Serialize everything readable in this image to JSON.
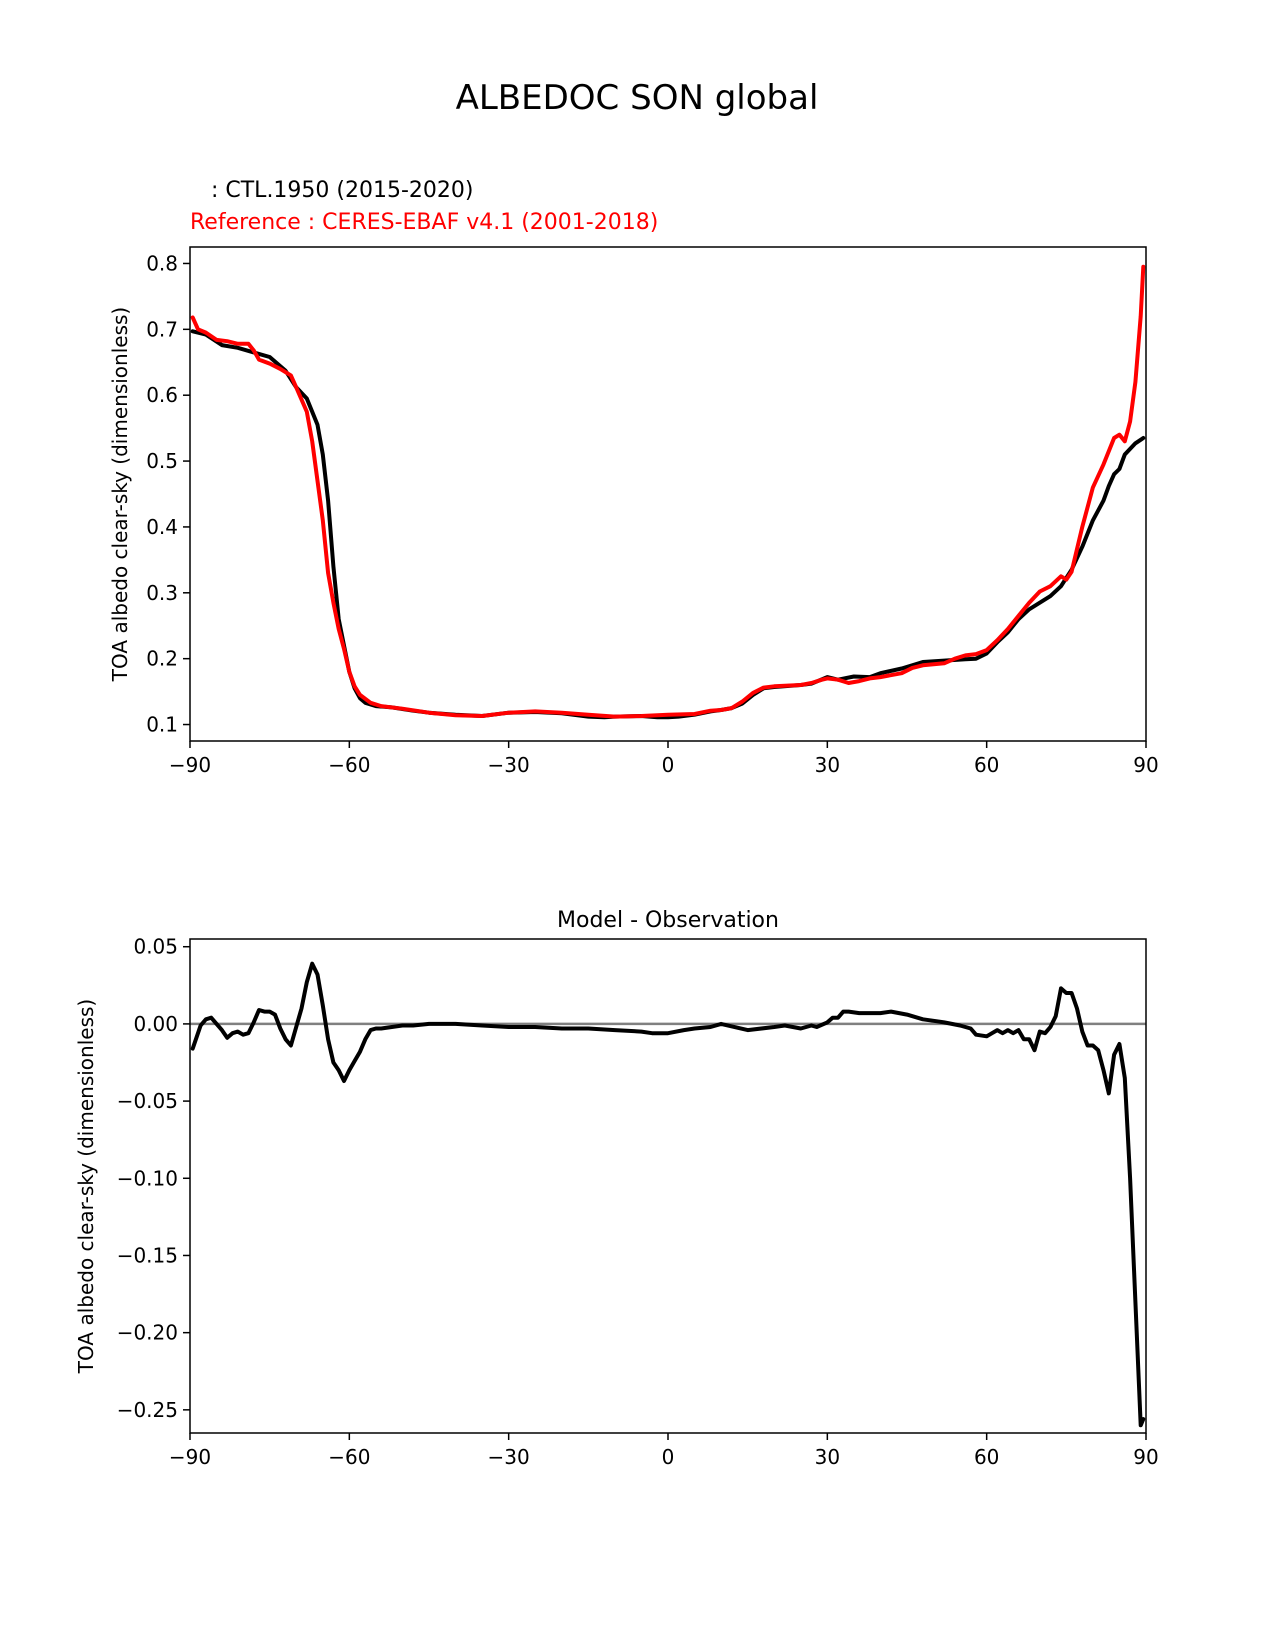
{
  "figure": {
    "suptitle": "ALBEDOC SON global",
    "model_label": "   : CTL.1950 (2015-2020)",
    "reference_label": "Reference : CERES-EBAF v4.1 (2001-2018)",
    "model_color": "#000000",
    "reference_color": "#ff0000",
    "zero_line_color": "#808080"
  },
  "chart_data": [
    {
      "type": "line",
      "title": "",
      "xlabel": "",
      "ylabel": "TOA albedo clear-sky (dimensionless)",
      "xlim": [
        -90,
        90
      ],
      "ylim": [
        0.075,
        0.825
      ],
      "xticks": [
        -90,
        -60,
        -30,
        0,
        30,
        60,
        90
      ],
      "xticklabels": [
        "−90",
        "−60",
        "−30",
        "0",
        "30",
        "60",
        "90"
      ],
      "yticks": [
        0.1,
        0.2,
        0.3,
        0.4,
        0.5,
        0.6,
        0.7,
        0.8
      ],
      "yticklabels": [
        "0.1",
        "0.2",
        "0.3",
        "0.4",
        "0.5",
        "0.6",
        "0.7",
        "0.8"
      ],
      "grid": false,
      "series": [
        {
          "color": "#000000",
          "x": [
            -89.5,
            -87,
            -84,
            -81,
            -78,
            -75,
            -72,
            -70,
            -68,
            -66,
            -65,
            -64,
            -63,
            -62,
            -61,
            -60,
            -59,
            -58,
            -57,
            -55,
            -52,
            -48,
            -45,
            -40,
            -35,
            -30,
            -25,
            -20,
            -15,
            -12,
            -10,
            -5,
            -2,
            0,
            2,
            5,
            8,
            10,
            12,
            14,
            16,
            18,
            20,
            25,
            27,
            30,
            32,
            35,
            38,
            40,
            44,
            46,
            48,
            52,
            56,
            58,
            60,
            62,
            64,
            66,
            68,
            70,
            72,
            74,
            76,
            78,
            80,
            82,
            83,
            84,
            85,
            86,
            88,
            89.5
          ],
          "y": [
            0.697,
            0.692,
            0.676,
            0.672,
            0.665,
            0.658,
            0.637,
            0.612,
            0.595,
            0.555,
            0.51,
            0.44,
            0.34,
            0.26,
            0.22,
            0.18,
            0.155,
            0.14,
            0.133,
            0.128,
            0.126,
            0.121,
            0.118,
            0.115,
            0.113,
            0.118,
            0.119,
            0.117,
            0.112,
            0.111,
            0.112,
            0.113,
            0.111,
            0.111,
            0.112,
            0.115,
            0.12,
            0.122,
            0.125,
            0.132,
            0.145,
            0.155,
            0.157,
            0.16,
            0.162,
            0.172,
            0.168,
            0.173,
            0.172,
            0.178,
            0.185,
            0.19,
            0.195,
            0.197,
            0.199,
            0.2,
            0.208,
            0.225,
            0.24,
            0.26,
            0.275,
            0.285,
            0.295,
            0.31,
            0.335,
            0.37,
            0.41,
            0.44,
            0.462,
            0.48,
            0.488,
            0.51,
            0.527,
            0.535
          ]
        },
        {
          "color": "#ff0000",
          "x": [
            -89.5,
            -88.5,
            -87,
            -85,
            -83,
            -81,
            -79,
            -78,
            -77,
            -75,
            -73,
            -71,
            -70,
            -68,
            -67,
            -66,
            -65,
            -64,
            -63,
            -62,
            -61,
            -60,
            -59,
            -58,
            -56,
            -54,
            -50,
            -45,
            -40,
            -35,
            -30,
            -25,
            -20,
            -15,
            -10,
            -5,
            0,
            5,
            8,
            10,
            12,
            14,
            16,
            18,
            20,
            25,
            27,
            29,
            30,
            32,
            34,
            36,
            38,
            40,
            44,
            46,
            48,
            52,
            54,
            56,
            58,
            60,
            62,
            64,
            66,
            68,
            70,
            72,
            74,
            75,
            76,
            78,
            80,
            82,
            84,
            85,
            86,
            87,
            88,
            89,
            89.5
          ],
          "y": [
            0.718,
            0.7,
            0.695,
            0.684,
            0.682,
            0.678,
            0.678,
            0.668,
            0.654,
            0.648,
            0.64,
            0.63,
            0.612,
            0.575,
            0.53,
            0.47,
            0.41,
            0.33,
            0.285,
            0.245,
            0.215,
            0.18,
            0.158,
            0.145,
            0.133,
            0.128,
            0.124,
            0.118,
            0.114,
            0.113,
            0.118,
            0.12,
            0.118,
            0.115,
            0.112,
            0.113,
            0.115,
            0.116,
            0.121,
            0.122,
            0.125,
            0.135,
            0.148,
            0.156,
            0.158,
            0.16,
            0.163,
            0.168,
            0.17,
            0.168,
            0.163,
            0.166,
            0.17,
            0.172,
            0.178,
            0.186,
            0.19,
            0.193,
            0.2,
            0.205,
            0.207,
            0.213,
            0.228,
            0.245,
            0.265,
            0.285,
            0.302,
            0.31,
            0.325,
            0.32,
            0.332,
            0.4,
            0.46,
            0.495,
            0.535,
            0.54,
            0.53,
            0.56,
            0.62,
            0.72,
            0.795
          ]
        }
      ]
    },
    {
      "type": "line",
      "title": "Model - Observation",
      "xlabel": "",
      "ylabel": "TOA albedo clear-sky (dimensionless)",
      "xlim": [
        -90,
        90
      ],
      "ylim": [
        -0.265,
        0.055
      ],
      "xticks": [
        -90,
        -60,
        -30,
        0,
        30,
        60,
        90
      ],
      "xticklabels": [
        "−90",
        "−60",
        "−30",
        "0",
        "30",
        "60",
        "90"
      ],
      "yticks": [
        0.05,
        0.0,
        -0.05,
        -0.1,
        -0.15,
        -0.2,
        -0.25
      ],
      "yticklabels": [
        "0.05",
        "0.00",
        "−0.05",
        "−0.10",
        "−0.15",
        "−0.20",
        "−0.25"
      ],
      "zero_line": 0,
      "grid": false,
      "series": [
        {
          "color": "#000000",
          "x": [
            -89.5,
            -88,
            -87,
            -86,
            -85,
            -84,
            -83,
            -82,
            -81,
            -80,
            -79,
            -78,
            -77,
            -76,
            -75,
            -74,
            -73,
            -72,
            -71,
            -70,
            -69,
            -68,
            -67,
            -66,
            -65,
            -64,
            -63,
            -62,
            -61,
            -60,
            -59,
            -58,
            -57,
            -56,
            -55,
            -54,
            -52,
            -50,
            -48,
            -45,
            -40,
            -35,
            -30,
            -25,
            -20,
            -15,
            -10,
            -5,
            -3,
            0,
            3,
            5,
            8,
            10,
            15,
            20,
            22,
            25,
            27,
            28,
            30,
            31,
            32,
            33,
            34,
            36,
            38,
            40,
            42,
            45,
            48,
            50,
            52,
            55,
            57,
            58,
            60,
            61,
            62,
            63,
            64,
            65,
            66,
            67,
            68,
            69,
            70,
            71,
            72,
            73,
            74,
            75,
            76,
            77,
            78,
            79,
            80,
            81,
            82,
            83,
            84,
            85,
            86,
            87,
            88,
            89,
            89.5
          ],
          "y": [
            -0.016,
            -0.001,
            0.003,
            0.004,
            0.0,
            -0.004,
            -0.009,
            -0.006,
            -0.005,
            -0.007,
            -0.006,
            0.001,
            0.009,
            0.008,
            0.008,
            0.006,
            -0.003,
            -0.01,
            -0.014,
            -0.002,
            0.01,
            0.027,
            0.039,
            0.032,
            0.012,
            -0.01,
            -0.025,
            -0.03,
            -0.037,
            -0.03,
            -0.024,
            -0.018,
            -0.01,
            -0.004,
            -0.003,
            -0.003,
            -0.002,
            -0.001,
            -0.001,
            0.0,
            0.0,
            -0.001,
            -0.002,
            -0.002,
            -0.003,
            -0.003,
            -0.004,
            -0.005,
            -0.006,
            -0.006,
            -0.004,
            -0.003,
            -0.002,
            0.0,
            -0.004,
            -0.002,
            -0.001,
            -0.003,
            -0.001,
            -0.002,
            0.001,
            0.004,
            0.004,
            0.008,
            0.008,
            0.007,
            0.007,
            0.007,
            0.008,
            0.006,
            0.003,
            0.002,
            0.001,
            -0.001,
            -0.003,
            -0.007,
            -0.008,
            -0.006,
            -0.004,
            -0.006,
            -0.004,
            -0.006,
            -0.004,
            -0.01,
            -0.01,
            -0.017,
            -0.005,
            -0.006,
            -0.002,
            0.005,
            0.023,
            0.02,
            0.02,
            0.01,
            -0.005,
            -0.014,
            -0.014,
            -0.017,
            -0.03,
            -0.045,
            -0.02,
            -0.013,
            -0.035,
            -0.1,
            -0.18,
            -0.26,
            -0.256
          ]
        }
      ]
    }
  ]
}
